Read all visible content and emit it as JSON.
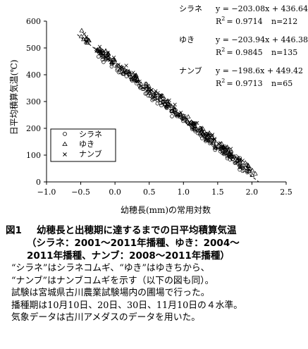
{
  "chart_data": {
    "type": "scatter",
    "x_range": [
      -1.0,
      2.5
    ],
    "y_range": [
      0,
      600
    ],
    "x_ticks": [
      "−1.0",
      "−0.5",
      "0.0",
      "0.5",
      "1.0",
      "1.5",
      "2.0",
      "2.5"
    ],
    "y_ticks": [
      "0",
      "100",
      "200",
      "300",
      "400",
      "500",
      "600"
    ],
    "xlabel": "幼穂長(mm)の常用対数",
    "ylabel": "日平均積算気温(℃)",
    "legend": {
      "position": "left-middle",
      "entries": [
        "シラネ",
        "ゆき",
        "ナンブ"
      ]
    },
    "grid": false,
    "series": [
      {
        "name": "シラネ",
        "marker": "circle",
        "slope": -203.08,
        "intercept": 436.64,
        "equation": "y = −203.08x + 436.64",
        "r2_value": "= 0.9714",
        "n": "n=212",
        "x_extent": [
          -0.25,
          2.0
        ],
        "count": 212
      },
      {
        "name": "ゆき",
        "marker": "triangle",
        "slope": -203.94,
        "intercept": 446.38,
        "equation": "y = −203.94x + 446.38",
        "r2_value": "= 0.9845",
        "n": "n=135",
        "x_extent": [
          -0.5,
          2.05
        ],
        "count": 135
      },
      {
        "name": "ナンブ",
        "marker": "cross",
        "slope": -198.6,
        "intercept": 449.42,
        "equation": "y = −198.6x + 449.42",
        "r2_value": "= 0.9713",
        "n": "n=65",
        "x_extent": [
          -0.45,
          2.0
        ],
        "count": 65
      }
    ],
    "fit_line": {
      "x": [
        -0.55,
        2.1
      ],
      "y": [
        550,
        0
      ]
    }
  },
  "r2_label": "R",
  "r2_sup": "2",
  "figure": {
    "label": "図1",
    "title_line1": "幼穂長と出穂期に達するまでの日平均積算気温",
    "title_line2": "（シラネ：2001～2011年播種、ゆき：2004～",
    "title_line3": "2011年播種、ナンブ：2008～2011年播種）"
  },
  "notes": [
    "“シラネ”はシラネコムギ、“ゆき”はゆきちから、",
    "“ナンブ”はナンブコムギを示す（以下の図も同）。",
    "試験は宮城県古川農業試験場内の圃場で行った。",
    "播種期は10月10日、20日、30日、11月10日の４水準。",
    "気象データは古川アメダスのデータを用いた。"
  ]
}
